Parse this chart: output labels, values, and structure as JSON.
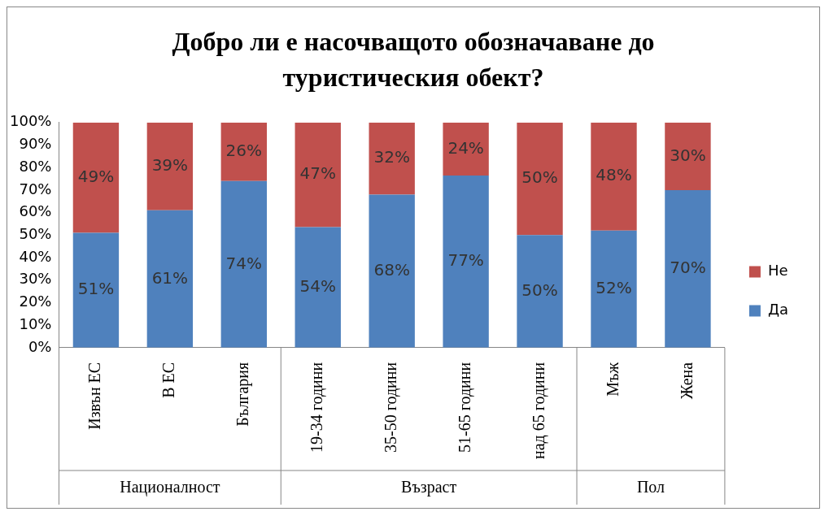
{
  "chart_data": {
    "type": "bar",
    "title": "Добро ли е насочващото обозначаване до туристическия обект?",
    "categories": [
      "Извън ЕС",
      "В ЕС",
      "България",
      "19-34 години",
      "35-50 години",
      "51-65 години",
      "над 65 години",
      "Мъж",
      "Жена"
    ],
    "series": [
      {
        "name": "Да",
        "color": "#4f81bd",
        "values": [
          51,
          61,
          74,
          53.5,
          68,
          76.5,
          50,
          52,
          70
        ],
        "value_labels": [
          "51%",
          "61%",
          "74%",
          "54%",
          "68%",
          "77%",
          "50%",
          "52%",
          "70%"
        ]
      },
      {
        "name": "Не",
        "color": "#c0504d",
        "values": [
          49,
          39,
          26,
          46.5,
          32,
          23.5,
          50,
          48,
          30
        ],
        "value_labels": [
          "49%",
          "39%",
          "26%",
          "47%",
          "32%",
          "24%",
          "50%",
          "48%",
          "30%"
        ]
      }
    ],
    "stacked": true,
    "ylim": [
      0,
      100
    ],
    "yticks": [
      {
        "value": 0,
        "label": "0%"
      },
      {
        "value": 10,
        "label": "10%"
      },
      {
        "value": 20,
        "label": "20%"
      },
      {
        "value": 30,
        "label": "30%"
      },
      {
        "value": 40,
        "label": "40%"
      },
      {
        "value": 50,
        "label": "50%"
      },
      {
        "value": 60,
        "label": "60%"
      },
      {
        "value": 70,
        "label": "70%"
      },
      {
        "value": 80,
        "label": "80%"
      },
      {
        "value": 90,
        "label": "90%"
      },
      {
        "value": 100,
        "label": "100%"
      }
    ],
    "legend": "right",
    "annotations": [
      "Националност",
      "Възраст",
      "Пол"
    ]
  }
}
